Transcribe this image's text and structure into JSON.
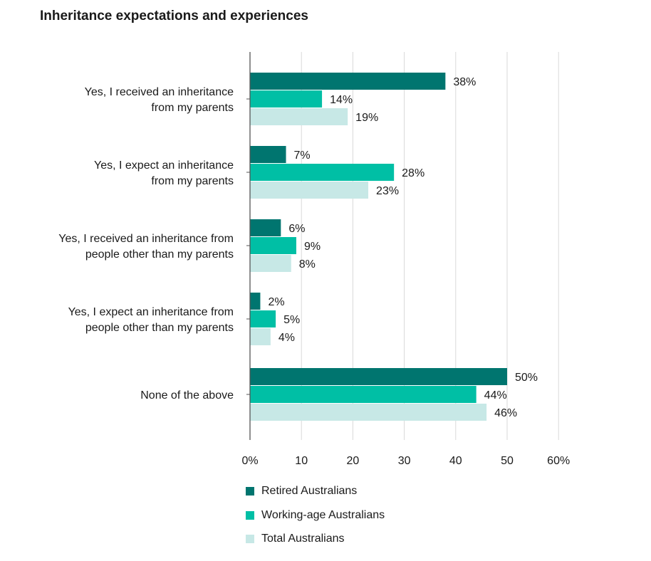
{
  "chart_data": {
    "type": "bar",
    "orientation": "horizontal",
    "title": "Inheritance expectations and experiences",
    "categories": [
      [
        "Yes, I received an inheritance",
        "from my parents"
      ],
      [
        "Yes, I expect an inheritance",
        "from my parents"
      ],
      [
        "Yes, I received an inheritance from",
        "people other than my parents"
      ],
      [
        "Yes, I expect an inheritance from",
        "people other than my parents"
      ],
      [
        "None of the above"
      ]
    ],
    "series": [
      {
        "name": "Retired Australians",
        "color": "#00756f",
        "values": [
          38,
          7,
          6,
          2,
          50
        ]
      },
      {
        "name": "Working-age Australians",
        "color": "#00bfa5",
        "values": [
          14,
          28,
          9,
          5,
          44
        ]
      },
      {
        "name": "Total Australians",
        "color": "#c7e8e6",
        "values": [
          19,
          23,
          8,
          4,
          46
        ]
      }
    ],
    "value_suffix": "%",
    "xlim": [
      0,
      60
    ],
    "xticks": [
      0,
      10,
      20,
      30,
      40,
      50,
      60
    ],
    "xtick_labels": [
      "0%",
      "10",
      "20",
      "30",
      "40",
      "50",
      "60%"
    ],
    "grid": true,
    "legend_position": "bottom"
  }
}
